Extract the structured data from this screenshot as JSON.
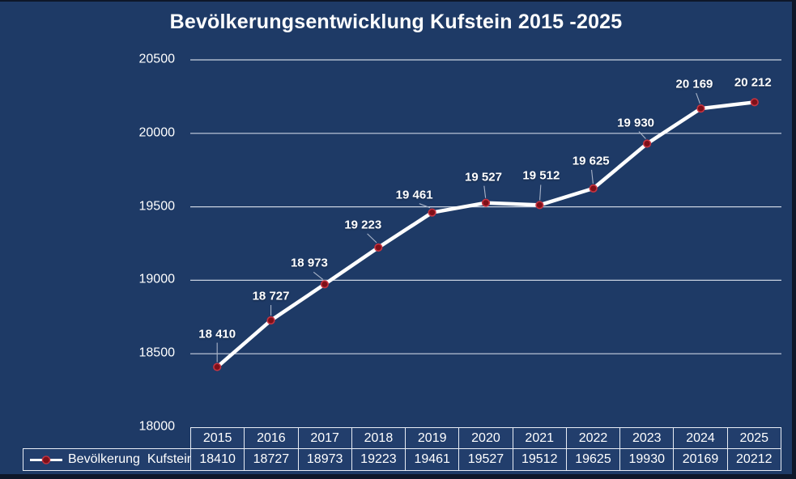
{
  "title": "Bevölkerungsentwicklung Kufstein 2015 -2025",
  "legend": {
    "label": "Bevölkerung  Kufstein"
  },
  "colors": {
    "background": "#1e3a66",
    "frame": "#0e1729",
    "grid": "#c9d2e0",
    "line": "#ffffff",
    "marker_fill": "#7e1019",
    "marker_stroke": "#c63441",
    "leader": "#a9b4c9",
    "text": "#ffffff",
    "table_border": "#e8edf5",
    "cell_background": "#223e6c"
  },
  "chart_data": {
    "type": "line",
    "title": "Bevölkerungsentwicklung Kufstein 2015 -2025",
    "categories": [
      "2015",
      "2016",
      "2017",
      "2018",
      "2019",
      "2020",
      "2021",
      "2022",
      "2023",
      "2024",
      "2025"
    ],
    "series": [
      {
        "name": "Bevölkerung Kufstein",
        "values": [
          18410,
          18727,
          18973,
          19223,
          19461,
          19527,
          19512,
          19625,
          19930,
          20169,
          20212
        ]
      }
    ],
    "point_labels": [
      "18 410",
      "18 727",
      "18 973",
      "19 223",
      "19 461",
      "19 527",
      "19 512",
      "19 625",
      "19 930",
      "20 169",
      "20 212"
    ],
    "table_values": [
      "18410",
      "18727",
      "18973",
      "19223",
      "19461",
      "19527",
      "19512",
      "19625",
      "19930",
      "20169",
      "20212"
    ],
    "yticks": [
      "20500",
      "20000",
      "19500",
      "19000",
      "18500",
      "18000"
    ],
    "ylim": [
      18000,
      20500
    ],
    "xlabel": "",
    "ylabel": "",
    "grid": "horizontal gridlines every 500",
    "legend_position": "bottom-left attached to data table"
  }
}
